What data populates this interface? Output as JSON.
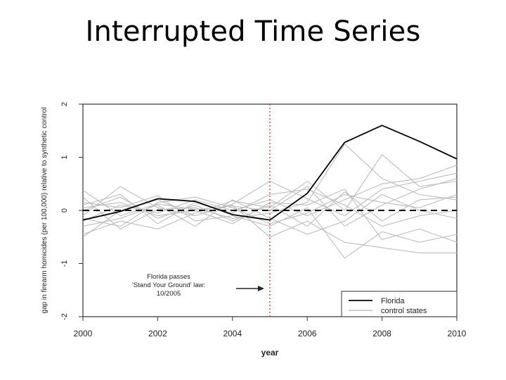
{
  "slide": {
    "title": "Interrupted Time Series"
  },
  "colors": {
    "florida": "#000000",
    "control": "#bdbdbd",
    "intervention": "#d9342b",
    "zero_line": "#000000",
    "axis": "#333333"
  },
  "chart_data": {
    "type": "line",
    "xlabel": "year",
    "ylabel": "gap in firearm homicides (per 100,000) relative to synthetic control",
    "xlim": [
      2000,
      2010
    ],
    "ylim": [
      -2,
      2
    ],
    "x_ticks": [
      "2000",
      "2002",
      "2004",
      "2006",
      "2008",
      "2010"
    ],
    "y_ticks": [
      "-2",
      "-1",
      "0",
      "1",
      "2"
    ],
    "x": [
      2000,
      2001,
      2002,
      2003,
      2004,
      2005,
      2006,
      2007,
      2008,
      2009,
      2010
    ],
    "intervention": {
      "x": 2005,
      "annotation": [
        "Florida passes",
        "'Stand Your Ground' law:",
        "10/2005"
      ]
    },
    "legend": {
      "position": "bottom-right",
      "entries": [
        "Florida",
        "control states"
      ]
    },
    "florida": [
      -0.18,
      -0.02,
      0.22,
      0.17,
      -0.08,
      -0.18,
      0.32,
      1.28,
      1.6,
      1.3,
      0.97
    ],
    "control_states": [
      [
        0.38,
        -0.1,
        0.12,
        0.02,
        0.08,
        0.0,
        0.45,
        -0.3,
        0.1,
        0.4,
        0.6
      ],
      [
        -0.1,
        0.45,
        0.05,
        -0.1,
        0.12,
        0.55,
        0.22,
        -0.1,
        0.4,
        0.55,
        0.7
      ],
      [
        0.0,
        0.25,
        -0.15,
        0.1,
        -0.2,
        0.1,
        -0.3,
        0.35,
        -0.2,
        0.2,
        0.25
      ],
      [
        -0.45,
        -0.2,
        -0.35,
        -0.05,
        0.18,
        0.05,
        0.55,
        0.0,
        1.05,
        0.45,
        0.55
      ],
      [
        0.15,
        0.05,
        0.28,
        -0.2,
        -0.1,
        -0.3,
        0.05,
        -0.9,
        -0.4,
        -0.6,
        -0.45
      ],
      [
        -0.2,
        0.1,
        -0.05,
        0.2,
        0.0,
        0.2,
        -0.1,
        0.2,
        0.5,
        0.6,
        0.85
      ],
      [
        0.25,
        -0.35,
        0.02,
        0.05,
        -0.15,
        -0.05,
        0.15,
        1.25,
        0.6,
        0.3,
        0.2
      ],
      [
        -0.5,
        0.0,
        0.2,
        -0.1,
        0.1,
        -0.5,
        -0.2,
        -0.6,
        -0.7,
        -0.8,
        -0.8
      ],
      [
        0.1,
        0.3,
        -0.25,
        0.15,
        -0.05,
        0.3,
        0.4,
        0.1,
        -0.3,
        -0.1,
        0.0
      ],
      [
        -0.3,
        -0.15,
        0.1,
        -0.3,
        0.2,
        -0.15,
        -0.45,
        -0.2,
        0.3,
        0.0,
        -0.15
      ],
      [
        0.05,
        0.15,
        -0.1,
        0.0,
        -0.25,
        0.15,
        0.1,
        0.4,
        -0.55,
        -0.35,
        -0.6
      ],
      [
        -0.15,
        -0.3,
        0.15,
        0.25,
        0.05,
        -0.25,
        -0.05,
        0.3,
        0.15,
        0.05,
        0.3
      ]
    ]
  }
}
